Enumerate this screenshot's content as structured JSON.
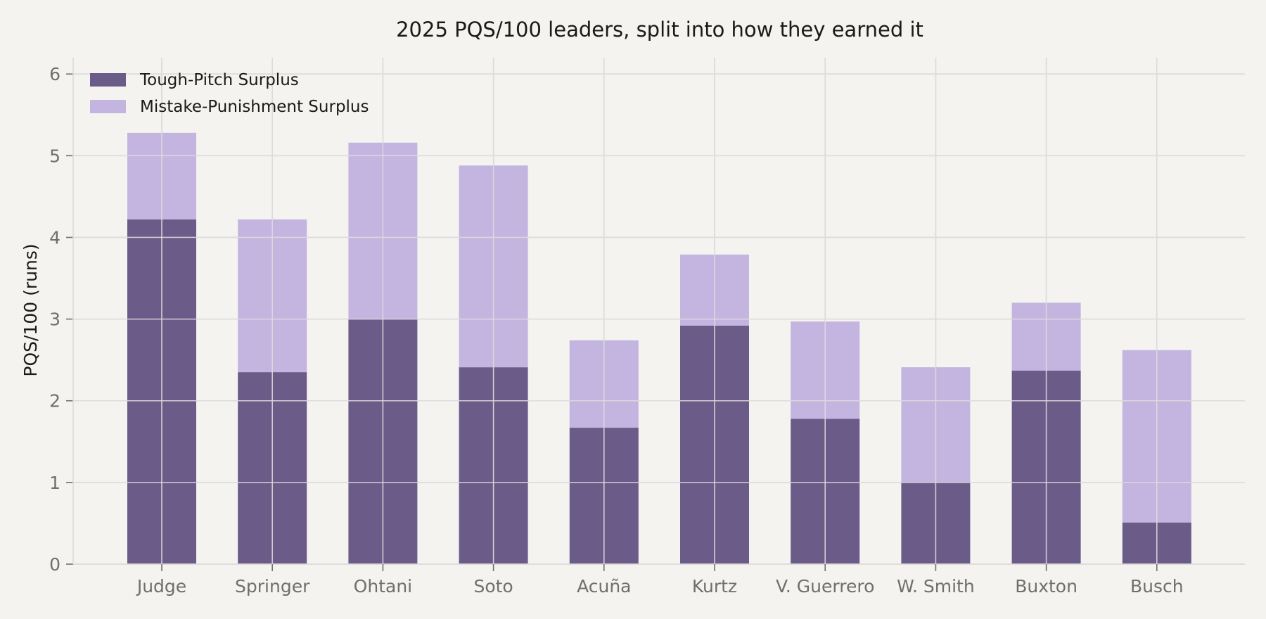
{
  "chart_data": {
    "type": "bar",
    "stacked": true,
    "title": "2025 PQS/100 leaders, split into how they earned it",
    "ylabel": "PQS/100 (runs)",
    "xlabel": "",
    "ylim": [
      0,
      6.2
    ],
    "yticks": [
      0,
      1,
      2,
      3,
      4,
      5,
      6
    ],
    "grid": true,
    "legend_position": "top-left",
    "categories": [
      "Judge",
      "Springer",
      "Ohtani",
      "Soto",
      "Acuña",
      "Kurtz",
      "V. Guerrero",
      "W. Smith",
      "Buxton",
      "Busch"
    ],
    "series": [
      {
        "name": "Tough-Pitch Surplus",
        "color": "#6b5b88",
        "values": [
          4.22,
          2.35,
          3.0,
          2.41,
          1.67,
          2.92,
          1.78,
          1.0,
          2.37,
          0.51
        ]
      },
      {
        "name": "Mistake-Punishment Surplus",
        "color": "#c4b4e0",
        "values": [
          1.06,
          1.87,
          2.16,
          2.47,
          1.07,
          0.87,
          1.19,
          1.41,
          0.83,
          2.11
        ]
      }
    ]
  }
}
